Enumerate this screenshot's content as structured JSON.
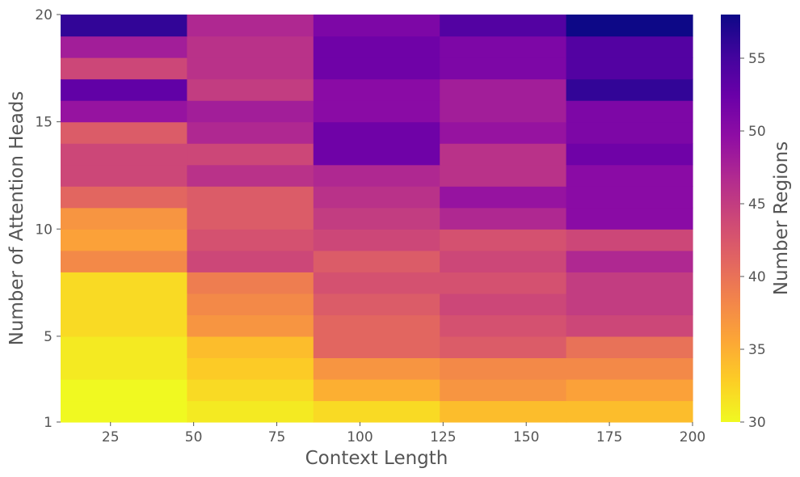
{
  "chart_data": {
    "type": "heatmap",
    "xlabel": "Context Length",
    "ylabel": "Number of Attention Heads",
    "colorbar_label": "Number Regions",
    "x_range": [
      10,
      200
    ],
    "y_range": [
      1,
      20
    ],
    "x_ticks": [
      25,
      50,
      75,
      100,
      125,
      150,
      175,
      200
    ],
    "y_ticks": [
      1,
      5,
      10,
      15,
      20
    ],
    "colorbar_ticks": [
      30,
      35,
      40,
      45,
      50,
      55
    ],
    "color_range": [
      30,
      58
    ],
    "colormap": "plasma",
    "x_bins": [
      10,
      48,
      86,
      124,
      162,
      200
    ],
    "y_bins": [
      1,
      2,
      3,
      4,
      5,
      6,
      7,
      8,
      9,
      10,
      11,
      12,
      13,
      14,
      15,
      16,
      17,
      18,
      19,
      20
    ],
    "values": [
      [
        30,
        31,
        32,
        34,
        34
      ],
      [
        30,
        32,
        35,
        37,
        36
      ],
      [
        31,
        33,
        37,
        38,
        38
      ],
      [
        31,
        34,
        41,
        42,
        40
      ],
      [
        32,
        37,
        41,
        43,
        44
      ],
      [
        32,
        38,
        42,
        44,
        45
      ],
      [
        32,
        39,
        43,
        43,
        45
      ],
      [
        38,
        44,
        42,
        44,
        47
      ],
      [
        36,
        43,
        44,
        43,
        44
      ],
      [
        37,
        42,
        45,
        47,
        50
      ],
      [
        41,
        42,
        46,
        49,
        50
      ],
      [
        44,
        46,
        47,
        46,
        50
      ],
      [
        44,
        44,
        52,
        46,
        52
      ],
      [
        42,
        47,
        52,
        49,
        51
      ],
      [
        49,
        48,
        50,
        48,
        51
      ],
      [
        53,
        45,
        50,
        48,
        56
      ],
      [
        44,
        46,
        52,
        51,
        54
      ],
      [
        48,
        46,
        52,
        51,
        54
      ],
      [
        56,
        47,
        51,
        54,
        58
      ]
    ]
  }
}
